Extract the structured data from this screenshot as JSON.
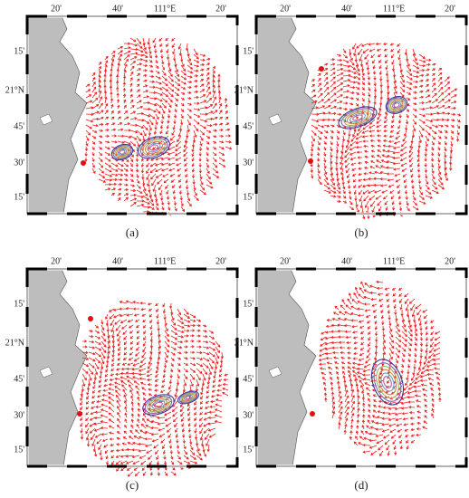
{
  "panels": [
    {
      "caption": "(a)",
      "x_labels": [
        "20'",
        "40'",
        "111°E",
        "20'"
      ],
      "y_labels": [
        "15'",
        "21°N",
        "45'",
        "30'",
        "15'"
      ]
    },
    {
      "caption": "(b)",
      "x_labels": [
        "20'",
        "40'",
        "111°E",
        "20'"
      ],
      "y_labels": [
        "15'",
        "21°N",
        "45'",
        "30'",
        "15'"
      ]
    },
    {
      "caption": "(c)",
      "x_labels": [
        "20'",
        "40'",
        "111°E",
        "20'"
      ],
      "y_labels": [
        "15'",
        "21°N",
        "45'",
        "30'",
        "15'"
      ]
    },
    {
      "caption": "(d)",
      "x_labels": [
        "20'",
        "40'",
        "111°E",
        "20'"
      ],
      "y_labels": [
        "15'",
        "21°N",
        "45'",
        "30'",
        "15'"
      ]
    }
  ]
}
